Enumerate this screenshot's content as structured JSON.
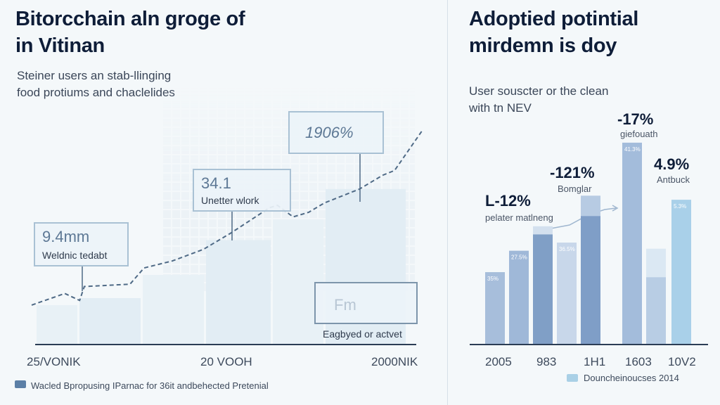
{
  "left": {
    "title_line1": "Bitorcchain aln groge of",
    "title_line2": "in Vitinan",
    "subtitle_line1": "Steiner users an stab-llinging",
    "subtitle_line2": "food protiums and chaclelides",
    "callouts": [
      {
        "value": "9.4mm",
        "label": "Weldnic tedabt"
      },
      {
        "value": "34.1",
        "label": "Unetter wlork"
      },
      {
        "value": "1906%",
        "label": ""
      },
      {
        "value": "Fm",
        "label": "Eagbyed or actvet"
      }
    ],
    "legend": {
      "label": "Wacled Bpropusing IParnac for 36it andbehected Pretenial",
      "color": "#5b7fa6"
    }
  },
  "right": {
    "title_line1": "Adoptied potintial",
    "title_line2": "mirdemn is doy",
    "subtitle_line1": "User souscter or the clean",
    "subtitle_line2": "with tn NEV",
    "annotations": [
      {
        "value": "L-12%",
        "label": "pelater matlneng"
      },
      {
        "value": "-121%",
        "label": "Bomglar"
      },
      {
        "value": "-17%",
        "label": "giefouath"
      },
      {
        "value": "4.9%",
        "label": "Antbuck"
      }
    ],
    "legend": {
      "label": "Douncheinoucses 2014",
      "color": "#a9d0e6"
    }
  },
  "chart_data": [
    {
      "type": "line",
      "title": "Bitorcchain aln groge of in Vitinan",
      "x_tick_labels": [
        "25/VONIK",
        "20 VOOH",
        "2000NIK"
      ],
      "xlim": [
        0,
        100
      ],
      "ylim": [
        0,
        100
      ],
      "series": [
        {
          "name": "Wacled Bpropusing IParnac for 36it andbehected Pretenial",
          "style": "dashed",
          "color": "#4f6a86",
          "x": [
            0,
            8.5,
            12.3,
            13.5,
            25.2,
            28.8,
            36,
            44,
            51,
            61,
            63,
            67,
            71,
            75,
            84,
            90,
            93,
            100
          ],
          "y": [
            17,
            22,
            19,
            25,
            26,
            33,
            36,
            41,
            48,
            59,
            60,
            55,
            57,
            61,
            67,
            73,
            75,
            92
          ]
        }
      ],
      "background_steps": [
        17,
        20,
        30,
        45,
        54,
        67
      ],
      "grid": false,
      "legend": "bottom-left"
    },
    {
      "type": "bar",
      "title": "Adoptied potintial mirdemn is doy",
      "x_tick_labels": [
        "2005",
        "983",
        "1H1",
        "1603",
        "10V2"
      ],
      "ylim": [
        0,
        100
      ],
      "bars": [
        {
          "value": 35.5,
          "label": "35%",
          "color": "#a7bedb"
        },
        {
          "value": 46,
          "label": "27.5%",
          "color": "#9fb8d8"
        },
        {
          "value": 58,
          "inner": 54,
          "color": "#809fc6",
          "cap_color": "#d3e0ee"
        },
        {
          "value": 50,
          "label": "36.5%",
          "color": "#c8d7ea"
        },
        {
          "value": 73,
          "inner": 63,
          "color": "#7f9ec7",
          "cap_color": "#b7cbe3"
        },
        {
          "value": 99,
          "label": "41.3%",
          "color": "#a3bcdb"
        },
        {
          "value": 47,
          "inner": 33,
          "color": "#b8cde4",
          "cap_color": "#dbe8f3"
        },
        {
          "value": 71,
          "label": "5.3%",
          "color": "#a9d0e9"
        }
      ],
      "grid": false,
      "legend": "bottom-right"
    }
  ]
}
